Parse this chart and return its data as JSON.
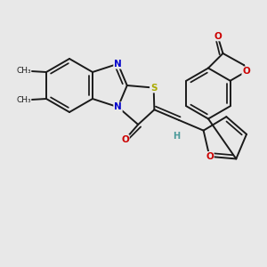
{
  "bg": "#e8e8e8",
  "bc": "#1a1a1a",
  "bw": 1.4,
  "atom_colors": {
    "N": "#0000cc",
    "O": "#cc0000",
    "S": "#aaaa00",
    "H": "#4a9a9a",
    "C": "#1a1a1a"
  },
  "fs": 7.5,
  "fig_w": 3.0,
  "fig_h": 3.0,
  "dpi": 100
}
